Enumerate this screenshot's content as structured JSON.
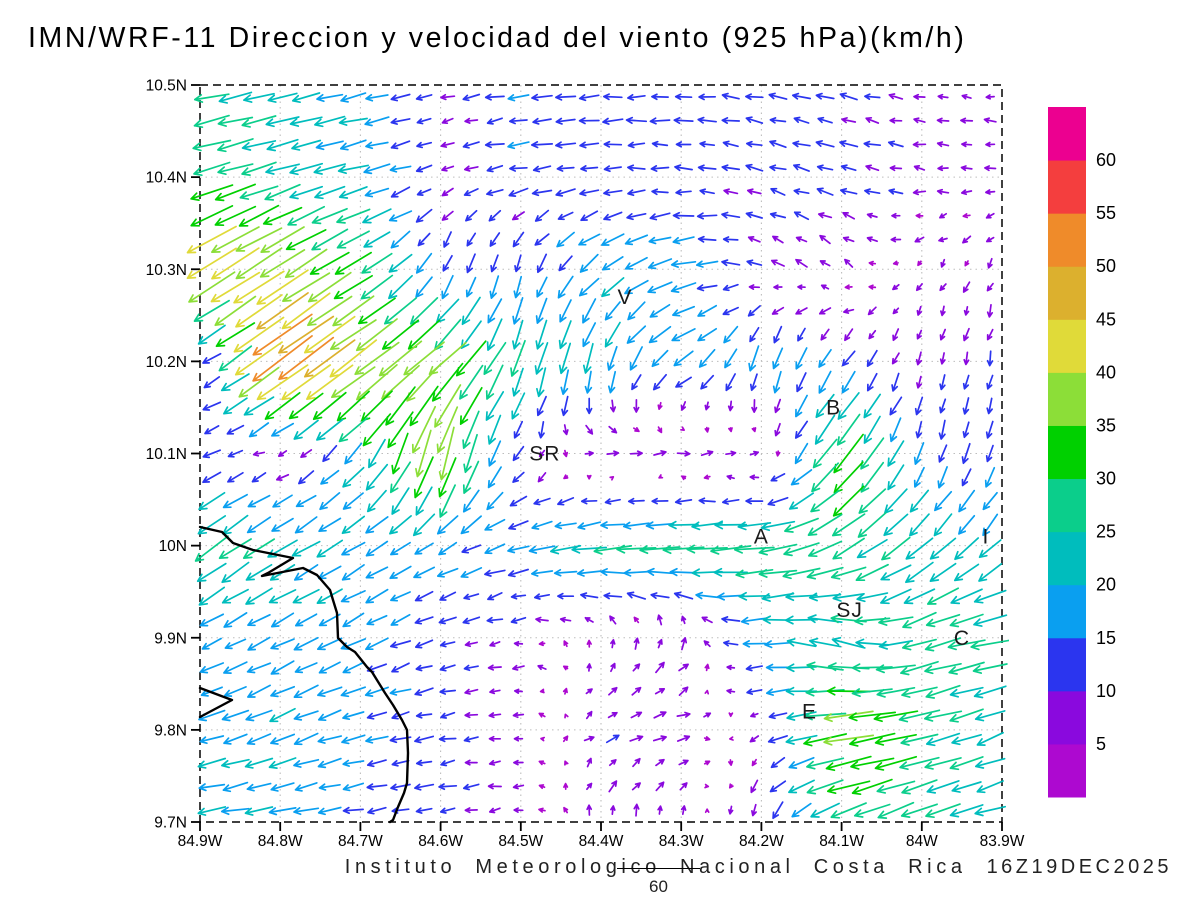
{
  "title": "IMN/WRF-11 Direccion y velocidad del viento (925 hPa)(km/h)",
  "footer": {
    "credit": "Instituto Meteorologico Nacional Costa Rica",
    "timestamp": "16Z19DEC2025",
    "reference_vector_label": "60"
  },
  "axes": {
    "lat_tick_labels": [
      "10.5N",
      "10.4N",
      "10.3N",
      "10.2N",
      "10.1N",
      "10N",
      "9.9N",
      "9.8N",
      "9.7N"
    ],
    "lat_tick_values": [
      10.5,
      10.4,
      10.3,
      10.2,
      10.1,
      10.0,
      9.9,
      9.8,
      9.7
    ],
    "lon_tick_labels": [
      "84.9W",
      "84.8W",
      "84.7W",
      "84.6W",
      "84.5W",
      "84.4W",
      "84.3W",
      "84.2W",
      "84.1W",
      "84W",
      "83.9W"
    ],
    "lon_tick_values": [
      84.9,
      84.8,
      84.7,
      84.6,
      84.5,
      84.4,
      84.3,
      84.2,
      84.1,
      84.0,
      83.9
    ],
    "grid": "dotted every 0.1 degree",
    "border": "dashed black"
  },
  "colorbar": {
    "thresholds": [
      5,
      10,
      15,
      20,
      25,
      30,
      35,
      40,
      45,
      50,
      55,
      60
    ],
    "colors_bottom_to_top": [
      "#ad09d0",
      "#8a09de",
      "#2b35ef",
      "#0a9ff0",
      "#00bdbd",
      "#0bce8b",
      "#00d000",
      "#8cde38",
      "#e0da39",
      "#dcb02e",
      "#ef8b2a",
      "#f43e3e",
      "#ec0090"
    ],
    "units": "km/h"
  },
  "city_labels": [
    {
      "text": "V",
      "lon": 84.37,
      "lat": 10.27
    },
    {
      "text": "B",
      "lon": 84.11,
      "lat": 10.15
    },
    {
      "text": "SR",
      "lon": 84.47,
      "lat": 10.1
    },
    {
      "text": "A",
      "lon": 84.2,
      "lat": 10.01
    },
    {
      "text": "SJ",
      "lon": 84.09,
      "lat": 9.93
    },
    {
      "text": "C",
      "lon": 83.95,
      "lat": 9.9
    },
    {
      "text": "E",
      "lon": 84.14,
      "lat": 9.82
    },
    {
      "text": "I",
      "lon": 83.92,
      "lat": 10.01
    }
  ],
  "coastline": {
    "main": [
      [
        200,
        527
      ],
      [
        222,
        532
      ],
      [
        233,
        543
      ],
      [
        253,
        550
      ],
      [
        293,
        558
      ],
      [
        268,
        573
      ],
      [
        262,
        576
      ],
      [
        303,
        568
      ],
      [
        317,
        575
      ],
      [
        330,
        590
      ],
      [
        333,
        600
      ],
      [
        337,
        613
      ],
      [
        338,
        638
      ],
      [
        347,
        647
      ],
      [
        355,
        652
      ],
      [
        367,
        667
      ],
      [
        372,
        672
      ],
      [
        385,
        693
      ],
      [
        393,
        705
      ],
      [
        402,
        720
      ],
      [
        407,
        730
      ],
      [
        408,
        753
      ],
      [
        407,
        783
      ],
      [
        404,
        793
      ],
      [
        398,
        807
      ],
      [
        393,
        820
      ],
      [
        390,
        822
      ]
    ],
    "peninsula": [
      [
        200,
        688
      ],
      [
        232,
        700
      ],
      [
        200,
        717
      ]
    ]
  },
  "chart_data": {
    "type": "vector_field",
    "title": "IMN/WRF-11 Direccion y velocidad del viento (925 hPa)(km/h)",
    "level": "925 hPa",
    "units": "km/h",
    "lon_range_W": [
      84.9,
      83.9
    ],
    "lat_range_N": [
      9.7,
      10.5
    ],
    "grid_note": "u = eastward component (km/h), v = northward component (km/h); rows ordered lat 10.5N down to 9.7N, cols ordered lon 84.9W east to 83.9W; arrow color = speed per colorbar thresholds",
    "lon_W": [
      84.9,
      84.8,
      84.7,
      84.6,
      84.5,
      84.4,
      84.3,
      84.2,
      84.1,
      84.0,
      83.9
    ],
    "lat_N": [
      10.5,
      10.4,
      10.3,
      10.2,
      10.1,
      10.0,
      9.9,
      9.8,
      9.7
    ],
    "u": [
      [
        -25,
        -22,
        -18,
        -8,
        -14,
        -15,
        -13,
        -12,
        -11,
        -8,
        -7
      ],
      [
        -28,
        -24,
        -20,
        -8,
        -14,
        -12,
        -11,
        -11,
        -12,
        -8,
        -7
      ],
      [
        -38,
        -34,
        -25,
        -5,
        -3,
        -16,
        -18,
        -8,
        -5,
        -3,
        -3
      ],
      [
        -6,
        -45,
        -34,
        -28,
        -8,
        -5,
        -15,
        -5,
        -8,
        -2,
        -2
      ],
      [
        -12,
        -5,
        -14,
        -10,
        -6,
        9,
        8,
        4,
        -22,
        -4,
        -4
      ],
      [
        -24,
        -20,
        -16,
        -14,
        -16,
        -26,
        -30,
        -30,
        -24,
        -18,
        -13
      ],
      [
        -14,
        -16,
        -16,
        -11,
        -7,
        0,
        4,
        -18,
        -24,
        -25,
        -28
      ],
      [
        -18,
        -18,
        -16,
        -11,
        -6,
        8,
        10,
        -6,
        -38,
        -28,
        -18
      ],
      [
        -20,
        -18,
        -13,
        -12,
        -7,
        1,
        1,
        -3,
        -25,
        -25,
        -20
      ]
    ],
    "v": [
      [
        -5,
        -5,
        -4,
        -2,
        -2,
        -1,
        0,
        2,
        3,
        1,
        1
      ],
      [
        -8,
        -7,
        -5,
        -3,
        -2,
        -1,
        1,
        3,
        3,
        1,
        0
      ],
      [
        -24,
        -22,
        -15,
        -13,
        -13,
        -12,
        -4,
        4,
        5,
        -4,
        -6
      ],
      [
        -3,
        -33,
        -25,
        -24,
        -25,
        -20,
        -10,
        -18,
        -12,
        -8,
        -10
      ],
      [
        -5,
        -2,
        -16,
        -40,
        -8,
        1,
        1,
        2,
        -28,
        -14,
        -12
      ],
      [
        -18,
        -12,
        -10,
        -8,
        -4,
        -3,
        -2,
        -3,
        -14,
        -16,
        -14
      ],
      [
        -7,
        -8,
        -8,
        -3,
        -1,
        6,
        8,
        -2,
        8,
        -8,
        -4
      ],
      [
        -5,
        -8,
        -4,
        -2,
        0,
        4,
        2,
        -3,
        -6,
        -6,
        -8
      ],
      [
        -3,
        -3,
        -2,
        -2,
        -1,
        8,
        7,
        -12,
        -10,
        -10,
        -5
      ]
    ],
    "reference_vector": {
      "speed": 60,
      "label": "60"
    }
  }
}
